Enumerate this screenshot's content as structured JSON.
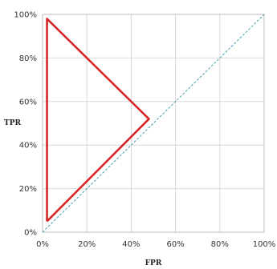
{
  "chart_data": {
    "type": "line",
    "xlabel": "FPR",
    "ylabel": "TPR",
    "xlim": [
      0,
      100
    ],
    "ylim": [
      0,
      100
    ],
    "xticks": [
      "0%",
      "20%",
      "40%",
      "60%",
      "80%",
      "100%"
    ],
    "yticks": [
      "0%",
      "20%",
      "40%",
      "60%",
      "80%",
      "100%"
    ],
    "grid": true,
    "series": [
      {
        "color": "#d62728",
        "x": [
          2,
          2,
          48,
          2
        ],
        "y": [
          5,
          98,
          52,
          5
        ]
      },
      {
        "color": "#4a9fb0",
        "style": "dashed",
        "x": [
          0,
          100
        ],
        "y": [
          0,
          100
        ]
      }
    ]
  }
}
